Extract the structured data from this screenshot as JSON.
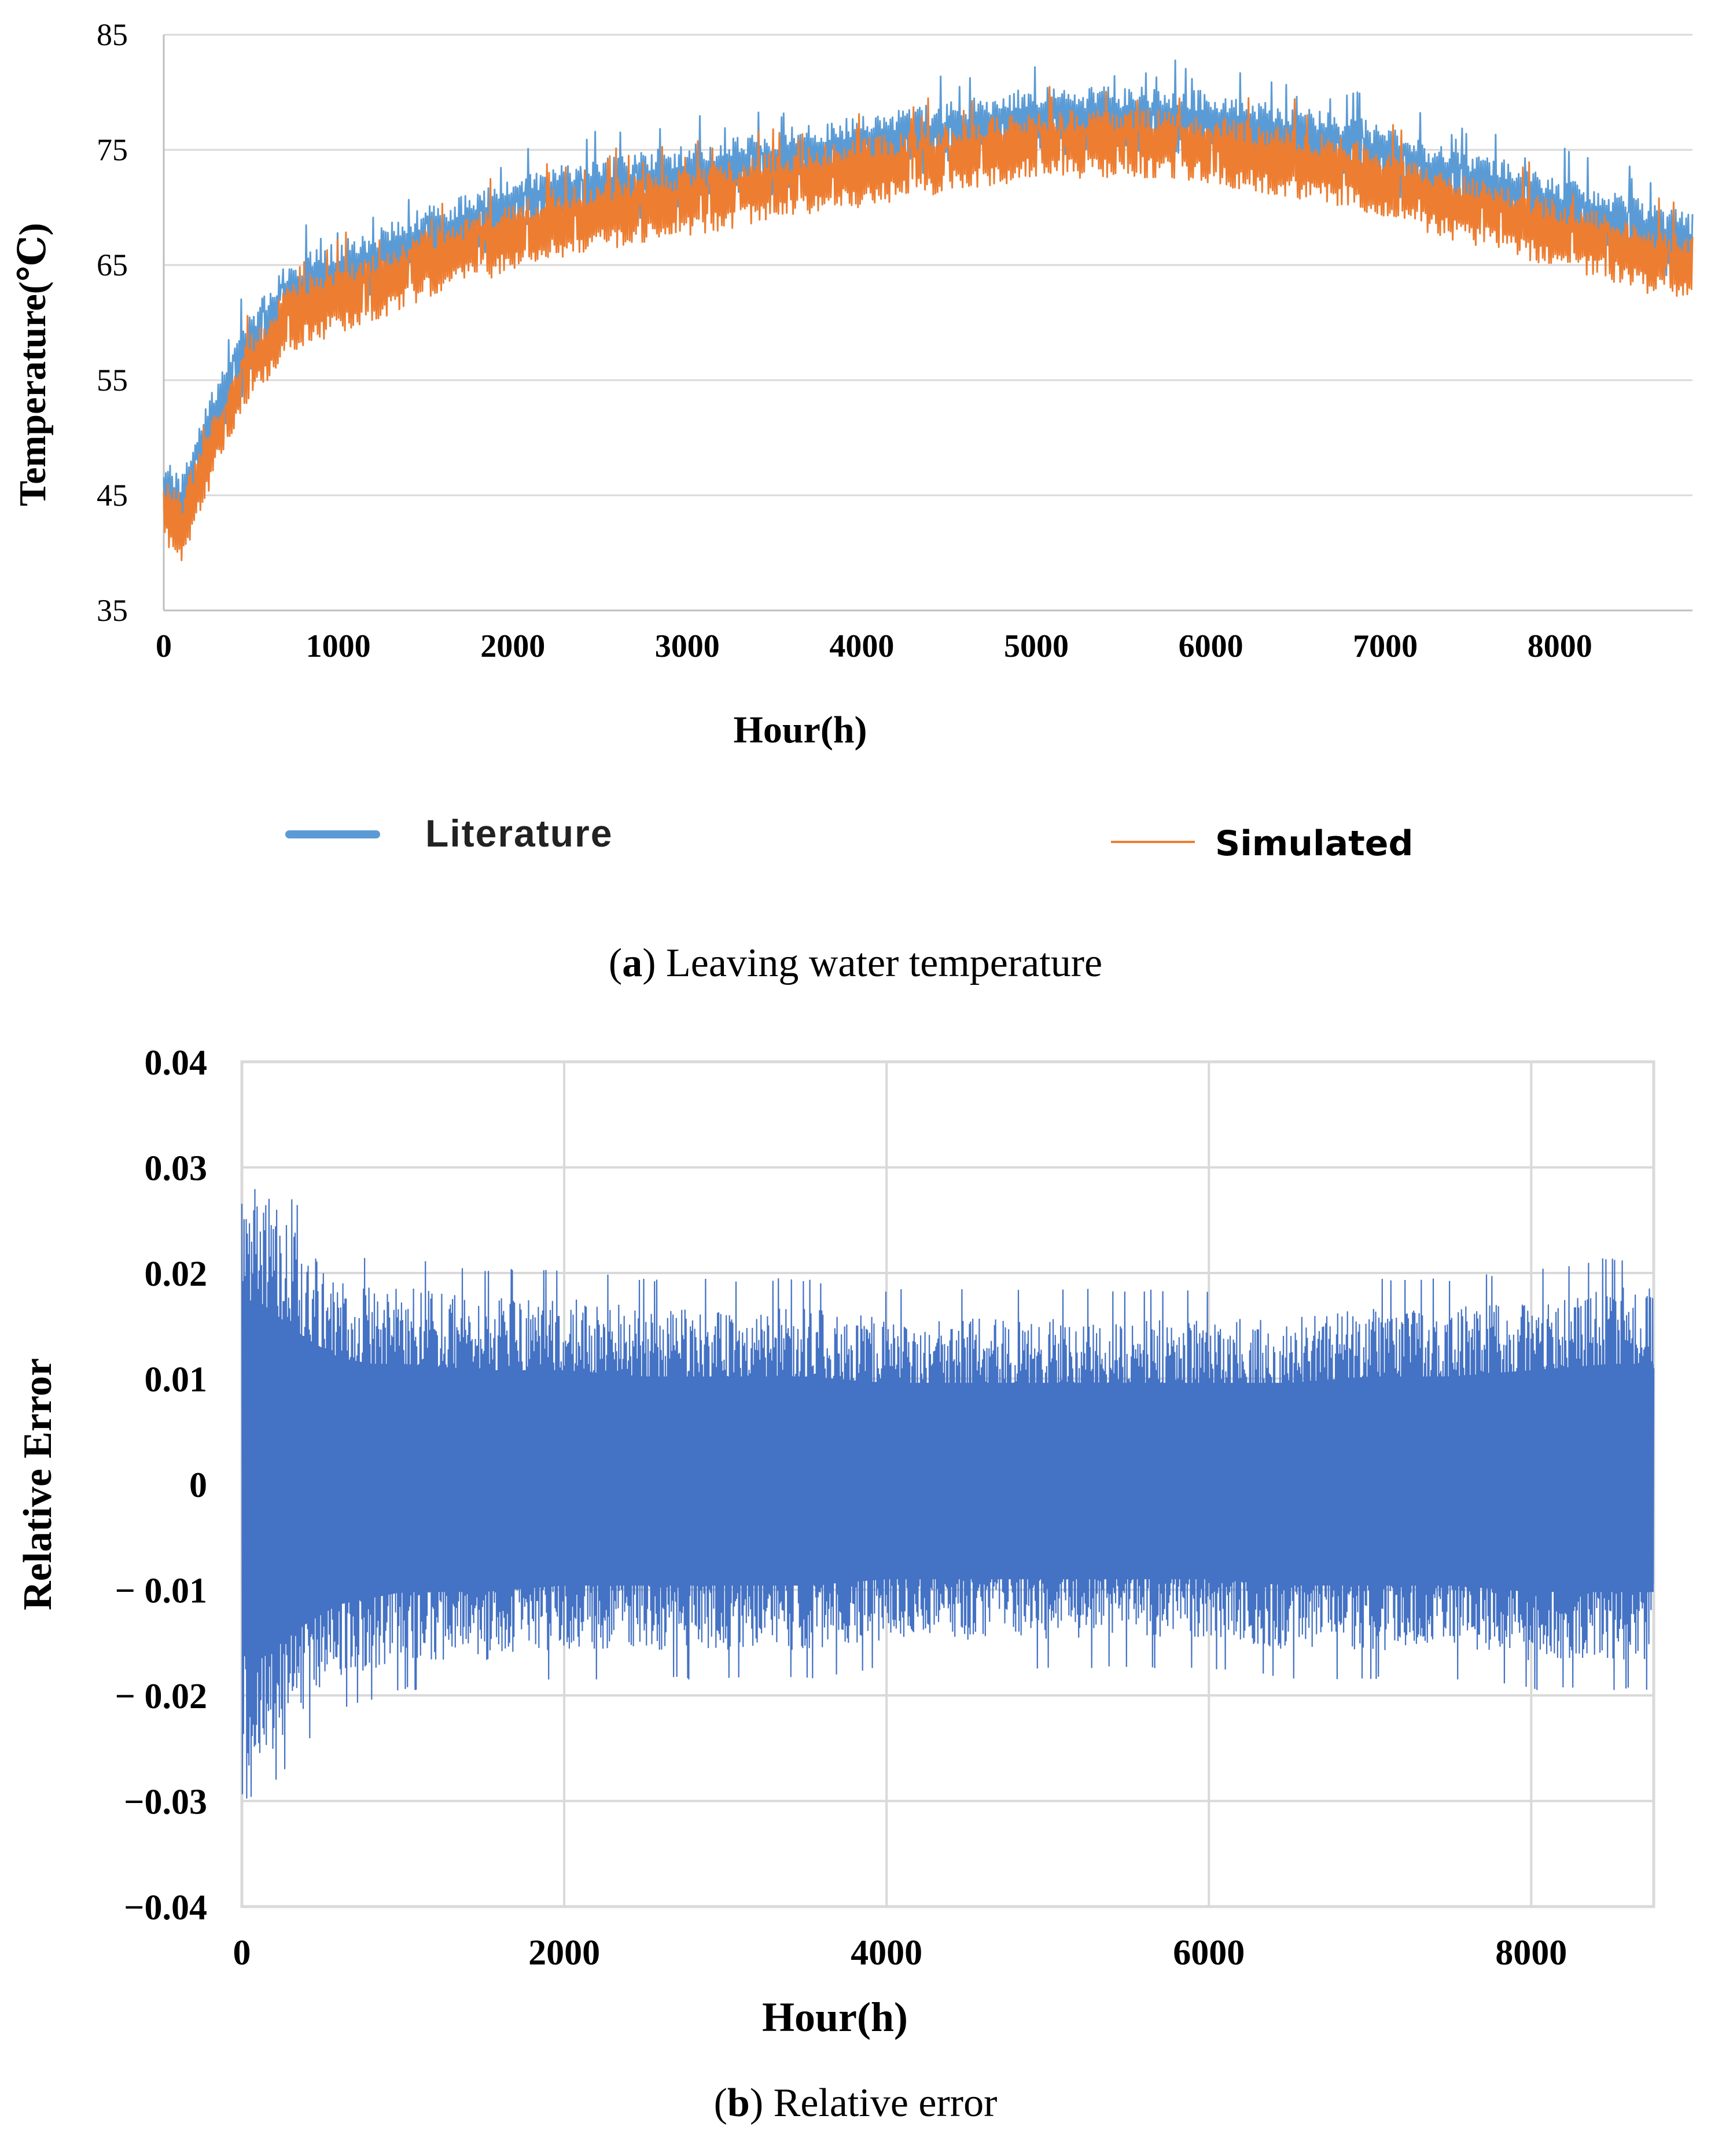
{
  "colors": {
    "literature": "#5b9bd5",
    "simulated": "#ed7d31",
    "relative_error": "#4472c4",
    "grid": "#d9d9d9"
  },
  "caption_a": {
    "letter": "a",
    "text": " Leaving water temperature"
  },
  "caption_b": {
    "letter": "b",
    "text": " Relative error"
  },
  "chart_data": [
    {
      "type": "line",
      "ylabel": "Temperature(℃)",
      "xlabel": "Hour(h)",
      "xlim": [
        0,
        8760
      ],
      "ylim": [
        35,
        85
      ],
      "xticks": [
        "0",
        "1000",
        "2000",
        "3000",
        "4000",
        "5000",
        "6000",
        "7000",
        "8000"
      ],
      "yticks": [
        "35",
        "45",
        "55",
        "65",
        "75",
        "85"
      ],
      "grid": "horizontal",
      "legend_position": "bottom",
      "x": [
        0,
        100,
        200,
        300,
        400,
        500,
        600,
        700,
        800,
        1000,
        1200,
        1400,
        1600,
        1800,
        2000,
        2200,
        2400,
        2600,
        2800,
        3000,
        3200,
        3400,
        3600,
        3800,
        4000,
        4200,
        4400,
        4600,
        4800,
        5000,
        5200,
        5400,
        5600,
        5800,
        6000,
        6200,
        6400,
        6600,
        6800,
        7000,
        7200,
        7400,
        7600,
        7800,
        8000,
        8200,
        8400,
        8600,
        8760
      ],
      "series": [
        {
          "name": "Literature",
          "values": [
            45,
            44,
            48,
            52,
            55,
            58,
            60,
            62,
            63,
            64,
            65,
            66.5,
            67.5,
            68.5,
            69.5,
            70.5,
            71,
            71.5,
            72,
            72.5,
            73,
            73.5,
            74,
            74.5,
            75,
            75.5,
            76,
            76.5,
            77,
            77.5,
            77.5,
            77.5,
            77.5,
            77.5,
            77,
            76.5,
            76,
            75.5,
            75,
            74,
            73,
            72,
            71.5,
            70.5,
            69.5,
            69,
            68,
            67,
            66.5
          ],
          "amplitude": [
            3,
            3,
            3,
            3,
            3,
            3,
            3,
            3,
            3,
            3,
            3,
            3,
            3,
            3,
            3,
            3,
            3,
            3,
            3,
            3,
            3,
            3,
            3,
            3,
            3,
            3,
            3,
            3,
            3,
            3,
            3,
            3,
            3,
            3,
            3,
            3,
            3,
            3,
            3,
            3,
            3,
            3,
            3,
            3,
            3,
            3,
            3,
            3,
            3
          ]
        },
        {
          "name": "Simulated",
          "values": [
            44,
            42,
            46,
            50,
            53,
            56,
            58,
            60,
            61,
            62,
            63,
            64.5,
            65.5,
            66.5,
            67.5,
            68.5,
            69,
            69.5,
            70,
            70.5,
            71,
            71.5,
            72,
            72.5,
            73,
            73.5,
            74,
            74.5,
            75,
            75.5,
            75.5,
            75.5,
            75.5,
            75.5,
            75,
            74.5,
            74,
            73.5,
            73,
            72,
            71,
            70,
            69.5,
            68.5,
            67.5,
            67,
            66,
            65,
            64.5
          ],
          "amplitude": [
            3,
            3,
            3,
            3,
            3,
            3,
            3,
            3,
            3,
            3,
            3,
            3,
            3,
            3,
            3,
            3,
            3,
            3,
            3,
            3,
            3,
            3,
            3,
            3,
            3,
            3,
            3,
            3,
            3,
            3,
            3,
            3,
            3,
            3,
            3,
            3,
            3,
            3,
            3,
            3,
            3,
            3,
            3,
            3,
            3,
            3,
            3,
            3,
            3
          ]
        }
      ]
    },
    {
      "type": "line",
      "ylabel": "Relative Error",
      "xlabel": "Hour(h)",
      "xlim": [
        0,
        8760
      ],
      "ylim": [
        -0.04,
        0.04
      ],
      "xticks": [
        "0",
        "2000",
        "4000",
        "6000",
        "8000"
      ],
      "yticks": [
        "−0.04",
        "−0.03",
        "− 0.02",
        "− 0.01",
        "0",
        "0.01",
        "0.02",
        "0.03",
        "0.04"
      ],
      "grid": "both",
      "x": [
        0,
        100,
        200,
        400,
        600,
        800,
        1000,
        1500,
        2000,
        2500,
        3000,
        3500,
        4000,
        4500,
        5000,
        5500,
        6000,
        6500,
        7000,
        7500,
        8000,
        8500,
        8760
      ],
      "series": [
        {
          "values_upper": [
            0.029,
            0.029,
            0.027,
            0.023,
            0.02,
            0.019,
            0.019,
            0.018,
            0.018,
            0.017,
            0.017,
            0.017,
            0.016,
            0.016,
            0.016,
            0.016,
            0.016,
            0.016,
            0.017,
            0.017,
            0.018,
            0.019,
            0.019
          ],
          "values_lower": [
            -0.027,
            -0.028,
            -0.026,
            -0.022,
            -0.019,
            -0.018,
            -0.017,
            -0.017,
            -0.016,
            -0.016,
            -0.016,
            -0.016,
            -0.015,
            -0.015,
            -0.015,
            -0.015,
            -0.015,
            -0.016,
            -0.016,
            -0.016,
            -0.017,
            -0.017,
            -0.017
          ]
        }
      ]
    }
  ]
}
